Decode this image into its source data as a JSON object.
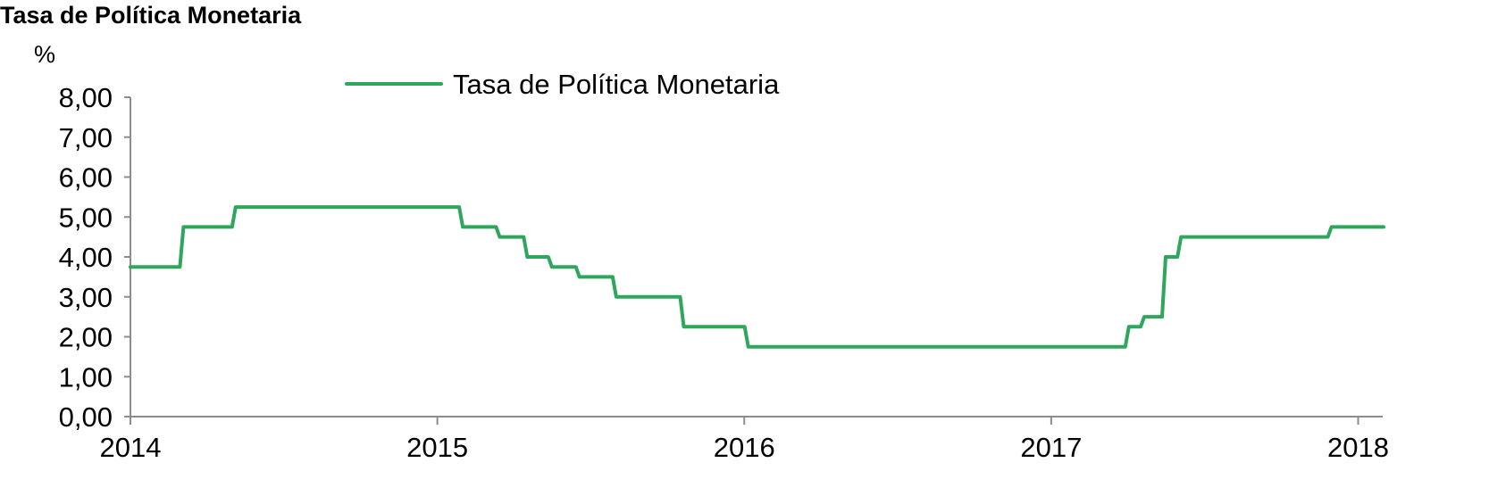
{
  "chart_data": {
    "type": "line",
    "title": "Tasa de Política Monetaria",
    "ylabel": "%",
    "xlabel": "",
    "ylim": [
      0,
      8
    ],
    "yticks": [
      "0,00",
      "1,00",
      "2,00",
      "3,00",
      "4,00",
      "5,00",
      "6,00",
      "7,00",
      "8,00"
    ],
    "ytick_values": [
      0,
      1,
      2,
      3,
      4,
      5,
      6,
      7,
      8
    ],
    "xlim": [
      2014,
      2018.08
    ],
    "xticks": [
      "2014",
      "2015",
      "2016",
      "2017",
      "2018"
    ],
    "xtick_values": [
      2014,
      2015,
      2016,
      2017,
      2018
    ],
    "legend_position": "top-center",
    "grid": false,
    "series": [
      {
        "name": "Tasa de Política Monetaria",
        "color": "#2ea65b",
        "step": true,
        "points": [
          [
            2014.0,
            3.75
          ],
          [
            2014.17,
            4.75
          ],
          [
            2014.34,
            5.25
          ],
          [
            2015.08,
            4.75
          ],
          [
            2015.2,
            4.5
          ],
          [
            2015.29,
            4.0
          ],
          [
            2015.37,
            3.75
          ],
          [
            2015.46,
            3.5
          ],
          [
            2015.58,
            3.0
          ],
          [
            2015.8,
            2.25
          ],
          [
            2016.01,
            1.75
          ],
          [
            2017.25,
            2.25
          ],
          [
            2017.3,
            2.5
          ],
          [
            2017.37,
            4.0
          ],
          [
            2017.42,
            4.5
          ],
          [
            2017.91,
            4.75
          ],
          [
            2018.08,
            4.75
          ]
        ]
      }
    ]
  }
}
